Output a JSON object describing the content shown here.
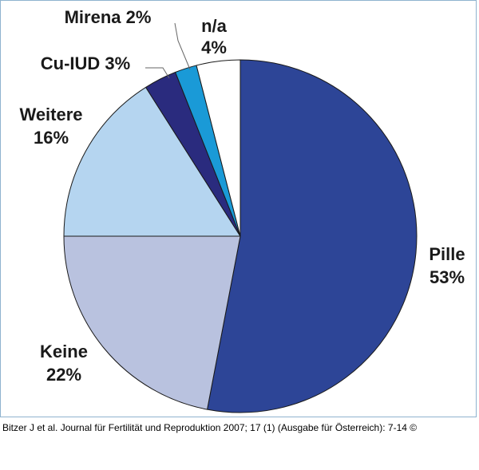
{
  "chart_data": {
    "type": "pie",
    "title": "",
    "slices": [
      {
        "label": "Pille",
        "value": 53,
        "display": "53%",
        "color": "#2d4597"
      },
      {
        "label": "Keine",
        "value": 22,
        "display": "22%",
        "color": "#b9c2df"
      },
      {
        "label": "Weitere",
        "value": 16,
        "display": "16%",
        "color": "#b5d5f0"
      },
      {
        "label": "Cu-IUD",
        "value": 3,
        "display": "3%",
        "color": "#2a2b7e"
      },
      {
        "label": "Mirena",
        "value": 2,
        "display": "2%",
        "color": "#1a9ad7"
      },
      {
        "label": "n/a",
        "value": 4,
        "display": "4%",
        "color": "#ffffff"
      }
    ],
    "start": "12 o'clock",
    "direction": "clockwise",
    "slice_border_color": "#1a1a1a"
  },
  "citation": "Bitzer J et al. Journal für Fertilität und Reproduktion 2007; 17 (1) (Ausgabe für Österreich): 7-14 ©",
  "frame_border_color": "#8fb3cf"
}
